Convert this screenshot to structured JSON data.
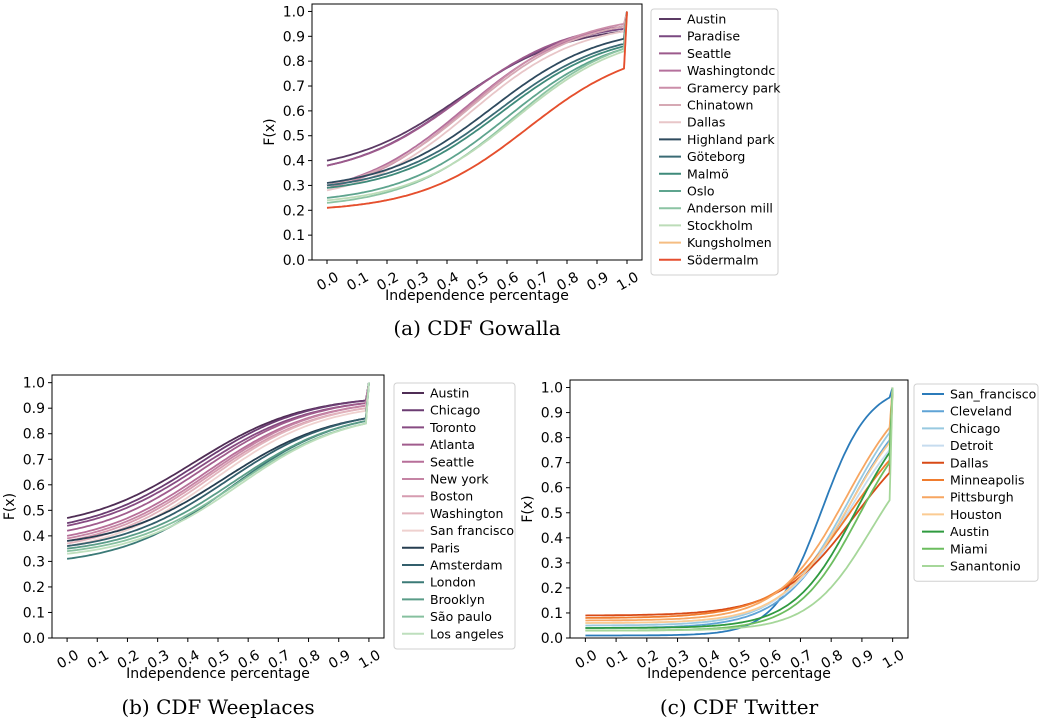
{
  "chart_data": [
    {
      "type": "line",
      "caption": "(a) CDF Gowalla",
      "xlabel": "Independence percentage",
      "ylabel": "F(x)",
      "xlim": [
        -0.05,
        1.05
      ],
      "ylim": [
        0.0,
        1.03
      ],
      "xticks": [
        "0.0",
        "0.1",
        "0.2",
        "0.3",
        "0.4",
        "0.5",
        "0.6",
        "0.7",
        "0.8",
        "0.9",
        "1.0"
      ],
      "yticks": [
        "0.0",
        "0.1",
        "0.2",
        "0.3",
        "0.4",
        "0.5",
        "0.6",
        "0.7",
        "0.8",
        "0.9",
        "1.0"
      ],
      "grid": false,
      "legend": "outside-right",
      "series": [
        {
          "name": "Austin",
          "color": "#5b3a64",
          "start": 0.4,
          "end": 0.92,
          "mid": 0.44,
          "steep": 5.5
        },
        {
          "name": "Paradise",
          "color": "#7a4880",
          "start": 0.38,
          "end": 0.93,
          "mid": 0.44,
          "steep": 5.5
        },
        {
          "name": "Seattle",
          "color": "#9c5a8c",
          "start": 0.38,
          "end": 0.94,
          "mid": 0.45,
          "steep": 5.5
        },
        {
          "name": "Washingtondc",
          "color": "#b5709c",
          "start": 0.3,
          "end": 0.94,
          "mid": 0.46,
          "steep": 5.5
        },
        {
          "name": "Gramercy park",
          "color": "#cb8ea9",
          "start": 0.29,
          "end": 0.95,
          "mid": 0.47,
          "steep": 5.5
        },
        {
          "name": "Chinatown",
          "color": "#d6a9b4",
          "start": 0.3,
          "end": 0.94,
          "mid": 0.48,
          "steep": 5.5
        },
        {
          "name": "Dallas",
          "color": "#e8c6c8",
          "start": 0.28,
          "end": 0.92,
          "mid": 0.48,
          "steep": 5.5
        },
        {
          "name": "Highland park",
          "color": "#2e4a5e",
          "start": 0.31,
          "end": 0.89,
          "mid": 0.55,
          "steep": 5.5
        },
        {
          "name": "Göteborg",
          "color": "#3a6b75",
          "start": 0.3,
          "end": 0.87,
          "mid": 0.57,
          "steep": 5.5
        },
        {
          "name": "Malmö",
          "color": "#3f8a7a",
          "start": 0.29,
          "end": 0.86,
          "mid": 0.58,
          "steep": 5.5
        },
        {
          "name": "Oslo",
          "color": "#5ea48e",
          "start": 0.25,
          "end": 0.85,
          "mid": 0.6,
          "steep": 5.5
        },
        {
          "name": "Anderson mill",
          "color": "#8cc4a3",
          "start": 0.23,
          "end": 0.85,
          "mid": 0.62,
          "steep": 5.5
        },
        {
          "name": "Stockholm",
          "color": "#bcdcb8",
          "start": 0.24,
          "end": 0.84,
          "mid": 0.63,
          "steep": 5.5
        },
        {
          "name": "Kungsholmen",
          "color": "#f5bd82",
          "start": 0.21,
          "end": 0.77,
          "mid": 0.67,
          "steep": 5.5
        },
        {
          "name": "Södermalm",
          "color": "#e54e2f",
          "start": 0.21,
          "end": 0.77,
          "mid": 0.67,
          "steep": 5.5
        }
      ]
    },
    {
      "type": "line",
      "caption": "(b) CDF Weeplaces",
      "xlabel": "Independence percentage",
      "ylabel": "F(x)",
      "xlim": [
        -0.05,
        1.05
      ],
      "ylim": [
        0.0,
        1.03
      ],
      "xticks": [
        "0.0",
        "0.1",
        "0.2",
        "0.3",
        "0.4",
        "0.5",
        "0.6",
        "0.7",
        "0.8",
        "0.9",
        "1.0"
      ],
      "yticks": [
        "0.0",
        "0.1",
        "0.2",
        "0.3",
        "0.4",
        "0.5",
        "0.6",
        "0.7",
        "0.8",
        "0.9",
        "1.0"
      ],
      "grid": false,
      "legend": "outside-right",
      "series": [
        {
          "name": "Austin",
          "color": "#4f2d55",
          "start": 0.47,
          "end": 0.93,
          "mid": 0.42,
          "steep": 5.5
        },
        {
          "name": "Chicago",
          "color": "#6b3c72",
          "start": 0.45,
          "end": 0.93,
          "mid": 0.43,
          "steep": 5.5
        },
        {
          "name": "Toronto",
          "color": "#874b82",
          "start": 0.44,
          "end": 0.92,
          "mid": 0.44,
          "steep": 5.5
        },
        {
          "name": "Atlanta",
          "color": "#a05c8d",
          "start": 0.42,
          "end": 0.92,
          "mid": 0.45,
          "steep": 5.5
        },
        {
          "name": "Seattle",
          "color": "#b76f99",
          "start": 0.4,
          "end": 0.91,
          "mid": 0.46,
          "steep": 5.5
        },
        {
          "name": "New york",
          "color": "#c584a4",
          "start": 0.39,
          "end": 0.91,
          "mid": 0.47,
          "steep": 5.5
        },
        {
          "name": "Boston",
          "color": "#d69cb0",
          "start": 0.38,
          "end": 0.9,
          "mid": 0.47,
          "steep": 5.5
        },
        {
          "name": "Washington",
          "color": "#e2b4bd",
          "start": 0.37,
          "end": 0.9,
          "mid": 0.48,
          "steep": 5.5
        },
        {
          "name": "San francisco",
          "color": "#efd1cf",
          "start": 0.36,
          "end": 0.89,
          "mid": 0.49,
          "steep": 5.5
        },
        {
          "name": "Paris",
          "color": "#263e51",
          "start": 0.38,
          "end": 0.86,
          "mid": 0.52,
          "steep": 5.5
        },
        {
          "name": "Amsterdam",
          "color": "#335f6c",
          "start": 0.36,
          "end": 0.86,
          "mid": 0.53,
          "steep": 5.5
        },
        {
          "name": "London",
          "color": "#3b7a77",
          "start": 0.31,
          "end": 0.85,
          "mid": 0.54,
          "steep": 5.5
        },
        {
          "name": "Brooklyn",
          "color": "#5a9c88",
          "start": 0.35,
          "end": 0.85,
          "mid": 0.55,
          "steep": 5.5
        },
        {
          "name": "São paulo",
          "color": "#86c09f",
          "start": 0.34,
          "end": 0.84,
          "mid": 0.56,
          "steep": 5.5
        },
        {
          "name": "Los angeles",
          "color": "#bedfbd",
          "start": 0.33,
          "end": 0.84,
          "mid": 0.57,
          "steep": 5.5
        }
      ]
    },
    {
      "type": "line",
      "caption": "(c) CDF Twitter",
      "xlabel": "Independence percentage",
      "ylabel": "F(x)",
      "xlim": [
        -0.05,
        1.05
      ],
      "ylim": [
        0.0,
        1.03
      ],
      "xticks": [
        "0.0",
        "0.1",
        "0.2",
        "0.3",
        "0.4",
        "0.5",
        "0.6",
        "0.7",
        "0.8",
        "0.9",
        "1.0"
      ],
      "yticks": [
        "0.0",
        "0.1",
        "0.2",
        "0.3",
        "0.4",
        "0.5",
        "0.6",
        "0.7",
        "0.8",
        "0.9",
        "1.0"
      ],
      "grid": false,
      "legend": "outside-right",
      "series": [
        {
          "name": "San_francisco",
          "color": "#2b7bba",
          "start": 0.01,
          "end": 0.96,
          "mid": 0.77,
          "steep": 13
        },
        {
          "name": "Cleveland",
          "color": "#5fa3d6",
          "start": 0.04,
          "end": 0.79,
          "mid": 0.86,
          "steep": 9
        },
        {
          "name": "Chicago",
          "color": "#98c9e0",
          "start": 0.05,
          "end": 0.82,
          "mid": 0.86,
          "steep": 9
        },
        {
          "name": "Detroit",
          "color": "#c6dcef",
          "start": 0.06,
          "end": 0.75,
          "mid": 0.86,
          "steep": 9
        },
        {
          "name": "Dallas",
          "color": "#d84a16",
          "start": 0.09,
          "end": 0.66,
          "mid": 0.88,
          "steep": 8
        },
        {
          "name": "Minneapolis",
          "color": "#f07c2e",
          "start": 0.08,
          "end": 0.71,
          "mid": 0.87,
          "steep": 8
        },
        {
          "name": "Pittsburgh",
          "color": "#f7a661",
          "start": 0.07,
          "end": 0.84,
          "mid": 0.85,
          "steep": 9
        },
        {
          "name": "Houston",
          "color": "#fbcb92",
          "start": 0.06,
          "end": 0.78,
          "mid": 0.86,
          "steep": 9
        },
        {
          "name": "Austin",
          "color": "#2f9a3f",
          "start": 0.04,
          "end": 0.74,
          "mid": 0.88,
          "steep": 10
        },
        {
          "name": "Miami",
          "color": "#6cbd5f",
          "start": 0.03,
          "end": 0.7,
          "mid": 0.89,
          "steep": 10
        },
        {
          "name": "Sanantonio",
          "color": "#a6d79a",
          "start": 0.03,
          "end": 0.55,
          "mid": 0.93,
          "steep": 10
        }
      ]
    }
  ]
}
